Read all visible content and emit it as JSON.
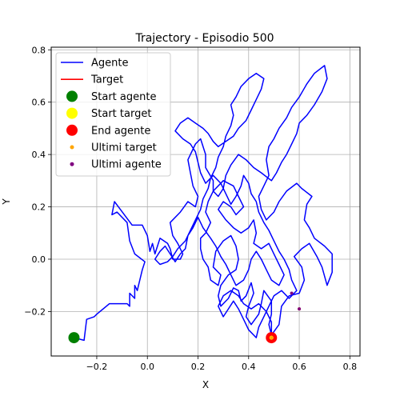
{
  "chart_data": {
    "type": "line",
    "title": "Trajectory - Episodio 500",
    "xlabel": "X",
    "ylabel": "Y",
    "xlim": [
      -0.38,
      0.84
    ],
    "ylim": [
      -0.37,
      0.81
    ],
    "xticks": [
      -0.2,
      0.0,
      0.2,
      0.4,
      0.6,
      0.8
    ],
    "yticks": [
      -0.2,
      0.0,
      0.2,
      0.4,
      0.6,
      0.8
    ],
    "xtick_labels": [
      "−0.2",
      "0.0",
      "0.2",
      "0.4",
      "0.6",
      "0.8"
    ],
    "ytick_labels": [
      "−0.2",
      "0.0",
      "0.2",
      "0.4",
      "0.6",
      "0.8"
    ],
    "grid": true,
    "legend_position": "top-left",
    "colors": {
      "agente": "#0000ff",
      "target": "#ff0000",
      "start_agente": "#008000",
      "start_target": "#ffff00",
      "end_agente": "#ff0000",
      "ultimi_target": "#ffa500",
      "ultimi_agente": "#800080"
    },
    "legend": [
      {
        "key": "agente",
        "label": "Agente",
        "kind": "line"
      },
      {
        "key": "target",
        "label": "Target",
        "kind": "line"
      },
      {
        "key": "start_agente",
        "label": "Start agente",
        "kind": "big-dot"
      },
      {
        "key": "start_target",
        "label": "Start target",
        "kind": "big-dot"
      },
      {
        "key": "end_agente",
        "label": "End agente",
        "kind": "big-dot"
      },
      {
        "key": "ultimi_target",
        "label": "Ultimi target",
        "kind": "small-dot"
      },
      {
        "key": "ultimi_agente",
        "label": "Ultimi agente",
        "kind": "small-dot"
      }
    ],
    "series": [
      {
        "name": "Agente",
        "points": [
          [
            -0.29,
            -0.3
          ],
          [
            -0.25,
            -0.31
          ],
          [
            -0.24,
            -0.23
          ],
          [
            -0.21,
            -0.22
          ],
          [
            -0.2,
            -0.21
          ],
          [
            -0.15,
            -0.17
          ],
          [
            -0.13,
            -0.17
          ],
          [
            -0.08,
            -0.17
          ],
          [
            -0.07,
            -0.18
          ],
          [
            -0.07,
            -0.13
          ],
          [
            -0.05,
            -0.15
          ],
          [
            -0.05,
            -0.1
          ],
          [
            -0.04,
            -0.12
          ],
          [
            -0.02,
            -0.04
          ],
          [
            -0.01,
            -0.01
          ],
          [
            -0.05,
            0.02
          ],
          [
            -0.07,
            0.07
          ],
          [
            -0.08,
            0.14
          ],
          [
            -0.12,
            0.18
          ],
          [
            -0.14,
            0.17
          ],
          [
            -0.13,
            0.22
          ],
          [
            -0.06,
            0.13
          ],
          [
            -0.02,
            0.13
          ],
          [
            0.0,
            0.09
          ],
          [
            0.01,
            0.03
          ],
          [
            0.02,
            0.06
          ],
          [
            0.03,
            0.02
          ],
          [
            0.05,
            0.08
          ],
          [
            0.08,
            0.06
          ],
          [
            0.09,
            0.04
          ],
          [
            0.1,
            0.0
          ],
          [
            0.13,
            0.0
          ],
          [
            0.14,
            0.02
          ],
          [
            0.12,
            0.06
          ],
          [
            0.1,
            0.09
          ],
          [
            0.09,
            0.14
          ],
          [
            0.13,
            0.18
          ],
          [
            0.16,
            0.22
          ],
          [
            0.19,
            0.2
          ],
          [
            0.2,
            0.24
          ],
          [
            0.18,
            0.28
          ],
          [
            0.17,
            0.33
          ],
          [
            0.16,
            0.38
          ],
          [
            0.19,
            0.44
          ],
          [
            0.21,
            0.46
          ],
          [
            0.23,
            0.4
          ],
          [
            0.23,
            0.35
          ],
          [
            0.26,
            0.3
          ],
          [
            0.26,
            0.26
          ],
          [
            0.24,
            0.22
          ],
          [
            0.23,
            0.18
          ],
          [
            0.25,
            0.14
          ],
          [
            0.23,
            0.1
          ],
          [
            0.21,
            0.08
          ],
          [
            0.21,
            0.04
          ],
          [
            0.22,
            0.0
          ],
          [
            0.24,
            -0.03
          ],
          [
            0.25,
            -0.08
          ],
          [
            0.28,
            -0.1
          ],
          [
            0.29,
            -0.06
          ],
          [
            0.26,
            -0.03
          ],
          [
            0.27,
            0.03
          ],
          [
            0.3,
            0.07
          ],
          [
            0.33,
            0.09
          ],
          [
            0.35,
            0.05
          ],
          [
            0.36,
            0.0
          ],
          [
            0.35,
            -0.04
          ],
          [
            0.32,
            -0.06
          ],
          [
            0.29,
            -0.1
          ],
          [
            0.28,
            -0.14
          ],
          [
            0.29,
            -0.18
          ],
          [
            0.32,
            -0.15
          ],
          [
            0.34,
            -0.11
          ],
          [
            0.36,
            -0.12
          ],
          [
            0.37,
            -0.16
          ],
          [
            0.39,
            -0.14
          ],
          [
            0.41,
            -0.09
          ],
          [
            0.42,
            -0.13
          ],
          [
            0.4,
            -0.18
          ],
          [
            0.39,
            -0.22
          ],
          [
            0.41,
            -0.25
          ],
          [
            0.44,
            -0.21
          ],
          [
            0.45,
            -0.17
          ],
          [
            0.46,
            -0.12
          ],
          [
            0.49,
            -0.16
          ],
          [
            0.49,
            -0.21
          ],
          [
            0.48,
            -0.25
          ],
          [
            0.49,
            -0.29
          ],
          [
            0.52,
            -0.25
          ],
          [
            0.53,
            -0.18
          ],
          [
            0.56,
            -0.14
          ],
          [
            0.6,
            -0.13
          ],
          [
            0.62,
            -0.08
          ],
          [
            0.61,
            -0.03
          ],
          [
            0.58,
            0.01
          ],
          [
            0.61,
            0.04
          ],
          [
            0.64,
            0.06
          ],
          [
            0.67,
            0.01
          ],
          [
            0.69,
            -0.03
          ],
          [
            0.71,
            -0.1
          ],
          [
            0.73,
            -0.05
          ],
          [
            0.73,
            0.02
          ],
          [
            0.7,
            0.05
          ],
          [
            0.66,
            0.08
          ],
          [
            0.64,
            0.12
          ],
          [
            0.62,
            0.15
          ],
          [
            0.63,
            0.21
          ],
          [
            0.65,
            0.24
          ],
          [
            0.61,
            0.27
          ],
          [
            0.59,
            0.29
          ],
          [
            0.55,
            0.26
          ],
          [
            0.52,
            0.22
          ],
          [
            0.5,
            0.18
          ],
          [
            0.47,
            0.15
          ],
          [
            0.45,
            0.19
          ],
          [
            0.44,
            0.24
          ],
          [
            0.46,
            0.28
          ],
          [
            0.48,
            0.32
          ],
          [
            0.47,
            0.38
          ],
          [
            0.48,
            0.43
          ],
          [
            0.5,
            0.46
          ],
          [
            0.52,
            0.5
          ],
          [
            0.55,
            0.54
          ],
          [
            0.57,
            0.58
          ],
          [
            0.6,
            0.62
          ],
          [
            0.63,
            0.67
          ],
          [
            0.66,
            0.71
          ],
          [
            0.7,
            0.74
          ],
          [
            0.71,
            0.69
          ],
          [
            0.69,
            0.64
          ],
          [
            0.66,
            0.59
          ],
          [
            0.63,
            0.55
          ],
          [
            0.6,
            0.52
          ],
          [
            0.59,
            0.48
          ],
          [
            0.57,
            0.44
          ],
          [
            0.55,
            0.4
          ],
          [
            0.53,
            0.37
          ],
          [
            0.51,
            0.33
          ],
          [
            0.49,
            0.3
          ],
          [
            0.45,
            0.33
          ],
          [
            0.42,
            0.35
          ],
          [
            0.39,
            0.38
          ],
          [
            0.36,
            0.4
          ],
          [
            0.33,
            0.36
          ],
          [
            0.31,
            0.32
          ],
          [
            0.3,
            0.27
          ],
          [
            0.28,
            0.24
          ],
          [
            0.26,
            0.26
          ],
          [
            0.3,
            0.3
          ],
          [
            0.34,
            0.28
          ],
          [
            0.36,
            0.24
          ],
          [
            0.38,
            0.2
          ],
          [
            0.35,
            0.17
          ],
          [
            0.33,
            0.2
          ],
          [
            0.3,
            0.22
          ],
          [
            0.28,
            0.19
          ],
          [
            0.31,
            0.15
          ],
          [
            0.34,
            0.12
          ],
          [
            0.37,
            0.1
          ],
          [
            0.4,
            0.12
          ],
          [
            0.42,
            0.15
          ],
          [
            0.43,
            0.1
          ],
          [
            0.42,
            0.06
          ],
          [
            0.45,
            0.04
          ],
          [
            0.48,
            0.06
          ],
          [
            0.5,
            0.02
          ],
          [
            0.52,
            -0.02
          ],
          [
            0.54,
            -0.06
          ],
          [
            0.52,
            -0.1
          ],
          [
            0.49,
            -0.08
          ],
          [
            0.47,
            -0.04
          ],
          [
            0.45,
            0.0
          ],
          [
            0.43,
            0.03
          ],
          [
            0.41,
            0.0
          ],
          [
            0.4,
            -0.04
          ],
          [
            0.38,
            -0.08
          ],
          [
            0.35,
            -0.1
          ],
          [
            0.33,
            -0.06
          ],
          [
            0.31,
            -0.02
          ],
          [
            0.29,
            0.01
          ],
          [
            0.27,
            0.05
          ],
          [
            0.25,
            0.08
          ],
          [
            0.22,
            0.12
          ],
          [
            0.2,
            0.16
          ],
          [
            0.18,
            0.12
          ],
          [
            0.16,
            0.09
          ],
          [
            0.15,
            0.04
          ],
          [
            0.13,
            0.02
          ],
          [
            0.11,
            -0.01
          ],
          [
            0.09,
            0.02
          ],
          [
            0.07,
            0.05
          ],
          [
            0.05,
            0.03
          ],
          [
            0.03,
            0.0
          ],
          [
            0.05,
            -0.02
          ],
          [
            0.08,
            -0.01
          ],
          [
            0.1,
            0.01
          ],
          [
            0.12,
            0.04
          ],
          [
            0.15,
            0.07
          ],
          [
            0.17,
            0.11
          ],
          [
            0.19,
            0.15
          ],
          [
            0.21,
            0.19
          ],
          [
            0.22,
            0.23
          ],
          [
            0.24,
            0.27
          ],
          [
            0.25,
            0.31
          ],
          [
            0.27,
            0.35
          ],
          [
            0.28,
            0.39
          ],
          [
            0.3,
            0.43
          ],
          [
            0.31,
            0.47
          ],
          [
            0.33,
            0.51
          ],
          [
            0.34,
            0.55
          ],
          [
            0.33,
            0.59
          ],
          [
            0.35,
            0.62
          ],
          [
            0.37,
            0.66
          ],
          [
            0.4,
            0.69
          ],
          [
            0.43,
            0.71
          ],
          [
            0.46,
            0.69
          ],
          [
            0.45,
            0.65
          ],
          [
            0.43,
            0.61
          ],
          [
            0.41,
            0.57
          ],
          [
            0.39,
            0.53
          ],
          [
            0.36,
            0.5
          ],
          [
            0.34,
            0.47
          ],
          [
            0.31,
            0.45
          ],
          [
            0.28,
            0.43
          ],
          [
            0.26,
            0.45
          ],
          [
            0.24,
            0.48
          ],
          [
            0.22,
            0.5
          ],
          [
            0.19,
            0.52
          ],
          [
            0.16,
            0.54
          ],
          [
            0.13,
            0.52
          ],
          [
            0.11,
            0.49
          ],
          [
            0.14,
            0.46
          ],
          [
            0.17,
            0.44
          ],
          [
            0.19,
            0.41
          ],
          [
            0.2,
            0.37
          ],
          [
            0.21,
            0.33
          ],
          [
            0.23,
            0.29
          ],
          [
            0.26,
            0.32
          ],
          [
            0.29,
            0.29
          ],
          [
            0.31,
            0.25
          ],
          [
            0.33,
            0.21
          ],
          [
            0.35,
            0.24
          ],
          [
            0.37,
            0.28
          ],
          [
            0.38,
            0.32
          ],
          [
            0.4,
            0.29
          ],
          [
            0.41,
            0.25
          ],
          [
            0.43,
            0.22
          ],
          [
            0.44,
            0.18
          ],
          [
            0.46,
            0.14
          ],
          [
            0.48,
            0.11
          ],
          [
            0.5,
            0.07
          ],
          [
            0.52,
            0.03
          ],
          [
            0.54,
            0.0
          ],
          [
            0.56,
            -0.04
          ],
          [
            0.57,
            -0.08
          ],
          [
            0.59,
            -0.12
          ],
          [
            0.56,
            -0.15
          ],
          [
            0.53,
            -0.12
          ],
          [
            0.5,
            -0.14
          ],
          [
            0.48,
            -0.18
          ],
          [
            0.46,
            -0.22
          ],
          [
            0.44,
            -0.26
          ],
          [
            0.43,
            -0.3
          ],
          [
            0.4,
            -0.27
          ],
          [
            0.38,
            -0.23
          ],
          [
            0.36,
            -0.19
          ],
          [
            0.34,
            -0.16
          ],
          [
            0.32,
            -0.19
          ],
          [
            0.3,
            -0.22
          ],
          [
            0.28,
            -0.18
          ],
          [
            0.3,
            -0.14
          ],
          [
            0.33,
            -0.12
          ],
          [
            0.36,
            -0.14
          ],
          [
            0.38,
            -0.17
          ],
          [
            0.41,
            -0.19
          ],
          [
            0.44,
            -0.17
          ],
          [
            0.47,
            -0.2
          ],
          [
            0.49,
            -0.24
          ],
          [
            0.49,
            -0.3
          ]
        ]
      }
    ],
    "points": {
      "start_agente": [
        -0.29,
        -0.3
      ],
      "end_agente": [
        0.49,
        -0.3
      ],
      "start_target": [
        0.49,
        -0.3
      ],
      "ultimi_target": [
        [
          0.49,
          -0.3
        ],
        [
          0.6,
          -0.19
        ]
      ],
      "ultimi_agente": [
        [
          0.57,
          -0.13
        ],
        [
          0.6,
          -0.19
        ]
      ]
    }
  }
}
